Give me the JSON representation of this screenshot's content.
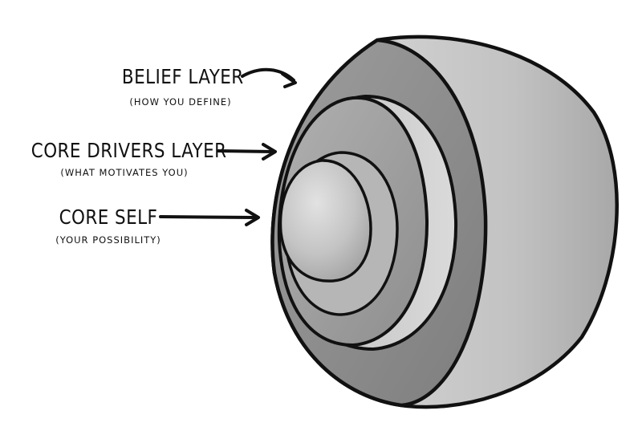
{
  "layers": [
    {
      "id": "belief",
      "title": "BELIEF LAYER",
      "subtitle": "(HOW YOU DEFINE)"
    },
    {
      "id": "drivers",
      "title": "CORE DRIVERS LAYER",
      "subtitle": "(WHAT MOTIVATES YOU)"
    },
    {
      "id": "core",
      "title": "CORE SELF",
      "subtitle": "(YOUR POSSIBILITY)"
    }
  ],
  "colors": {
    "ink": "#111111",
    "outer_shell": "#b8b8b8",
    "outer_rim": "#8c8c8c",
    "middle_ring": "#a3a3a3",
    "inner_sphere": "#c9c9c9"
  }
}
